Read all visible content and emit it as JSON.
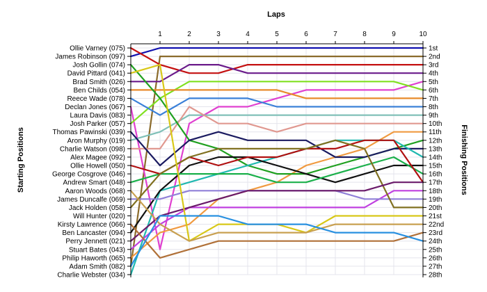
{
  "chart_data": {
    "type": "line",
    "title": "",
    "xlabel": "Laps",
    "ylabel": "Starting Positions",
    "y2label": "Finishing Positions",
    "x": [
      0,
      1,
      2,
      3,
      4,
      5,
      6,
      7,
      8,
      9,
      10
    ],
    "lap_tick_labels": [
      "1",
      "2",
      "3",
      "4",
      "5",
      "6",
      "7",
      "8",
      "9",
      "10"
    ],
    "ylim": [
      1,
      28
    ],
    "y_inverted": true,
    "grid": true,
    "starting_labels": [
      "Ollie Varney (075)",
      "James Robinson (097)",
      "Josh Gollin (074)",
      "David Pittard (041)",
      "Brad Smith (026)",
      "Ben Childs (054)",
      "Reece Wade (078)",
      "Declan Jones (067)",
      "Laura Davis (083)",
      "Josh Parker (057)",
      "Thomas Pawinski (039)",
      "Aron Murphy (019)",
      "Charlie Watson (098)",
      "Alex Magee (092)",
      "Ollie Howell (050)",
      "George Cosgrove (046)",
      "Andrew Smart (048)",
      "Aaron Woods (068)",
      "James Duncalfe (069)",
      "Jack Holden (058)",
      "Will Hunter (020)",
      "Kirsty Lawrence (066)",
      "Ben Lancaster (094)",
      "Perry Jennett (021)",
      "Stuart Bates (043)",
      "Philip Haworth (065)",
      "Adam Smith (082)",
      "Charlie Webster (034)"
    ],
    "finishing_labels": [
      "1st",
      "2nd",
      "3rd",
      "4th",
      "5th",
      "6th",
      "7th",
      "8th",
      "9th",
      "10th",
      "11th",
      "12th",
      "13th",
      "14th",
      "15th",
      "16th",
      "17th",
      "18th",
      "19th",
      "20th",
      "21st",
      "22nd",
      "23rd",
      "24th",
      "25th",
      "26th",
      "27th",
      "28th"
    ],
    "series": [
      {
        "color": "#1010b0",
        "values": [
          2,
          1,
          1,
          1,
          1,
          1,
          1,
          1,
          1,
          1,
          1
        ]
      },
      {
        "color": "#8a6a2a",
        "values": [
          27,
          2,
          2,
          2,
          2,
          2,
          2,
          2,
          2,
          2,
          2
        ]
      },
      {
        "color": "#c41010",
        "values": [
          1,
          3,
          4,
          4,
          3,
          3,
          3,
          3,
          3,
          3,
          3
        ]
      },
      {
        "color": "#6a1a8a",
        "values": [
          5,
          5,
          3,
          3,
          4,
          4,
          4,
          4,
          4,
          4,
          4
        ]
      },
      {
        "color": "#e040d0",
        "values": [
          8,
          25,
          10,
          8,
          8,
          7,
          6,
          6,
          6,
          6,
          5
        ]
      },
      {
        "color": "#80e020",
        "values": [
          10,
          7,
          5,
          5,
          5,
          5,
          5,
          5,
          5,
          5,
          6
        ]
      },
      {
        "color": "#e88a2a",
        "values": [
          6,
          6,
          6,
          6,
          6,
          6,
          7,
          7,
          7,
          7,
          7
        ]
      },
      {
        "color": "#3a80d8",
        "values": [
          7,
          9,
          7,
          7,
          7,
          8,
          8,
          8,
          8,
          8,
          8
        ]
      },
      {
        "color": "#80c0b8",
        "values": [
          12,
          11,
          9,
          9,
          9,
          9,
          9,
          9,
          9,
          9,
          9
        ]
      },
      {
        "color": "#e09890",
        "values": [
          13,
          13,
          8,
          10,
          10,
          11,
          10,
          10,
          10,
          10,
          10
        ]
      },
      {
        "color": "#f09a40",
        "values": [
          26,
          23,
          22,
          19,
          18,
          17,
          15,
          14,
          13,
          11,
          11
        ]
      },
      {
        "color": "#20a020",
        "values": [
          3,
          7,
          12,
          13,
          15,
          16,
          16,
          15,
          14,
          13,
          12
        ]
      },
      {
        "color": "#1a1a60",
        "values": [
          11,
          15,
          12,
          11,
          12,
          12,
          12,
          14,
          14,
          13,
          13
        ]
      },
      {
        "color": "#20b8b0",
        "values": [
          28,
          18,
          17,
          16,
          15,
          14,
          13,
          12,
          12,
          12,
          14
        ]
      },
      {
        "color": "#101010",
        "values": [
          23,
          18,
          15,
          14,
          14,
          15,
          16,
          17,
          16,
          15,
          15
        ]
      },
      {
        "color": "#1ab04a",
        "values": [
          17,
          16,
          16,
          16,
          16,
          17,
          17,
          16,
          15,
          14,
          16
        ]
      },
      {
        "color": "#b01010",
        "values": [
          15,
          16,
          14,
          15,
          14,
          14,
          13,
          13,
          12,
          12,
          17
        ]
      },
      {
        "color": "#c040e0",
        "values": [
          25,
          22,
          20,
          20,
          20,
          20,
          20,
          20,
          20,
          18,
          18
        ]
      },
      {
        "color": "#9080d8",
        "values": [
          19,
          19,
          18,
          18,
          18,
          18,
          18,
          18,
          19,
          19,
          19
        ]
      },
      {
        "color": "#807020",
        "values": [
          20,
          16,
          14,
          13,
          13,
          13,
          13,
          12,
          13,
          20,
          20
        ]
      },
      {
        "color": "#6a1a6a",
        "values": [
          24,
          21,
          20,
          19,
          18,
          18,
          18,
          18,
          18,
          17,
          17
        ]
      },
      {
        "color": "#d8c818",
        "values": [
          4,
          3,
          24,
          22,
          22,
          22,
          23,
          21,
          21,
          21,
          21
        ]
      },
      {
        "color": "#c8a050",
        "values": [
          18,
          22,
          24,
          23,
          23,
          23,
          23,
          22,
          22,
          22,
          22
        ]
      },
      {
        "color": "#b07038",
        "values": [
          22,
          26,
          25,
          24,
          24,
          24,
          24,
          24,
          24,
          24,
          23
        ]
      },
      {
        "color": "#2890e0",
        "values": [
          27,
          21,
          21,
          21,
          22,
          22,
          22,
          23,
          23,
          23,
          24
        ]
      }
    ]
  }
}
